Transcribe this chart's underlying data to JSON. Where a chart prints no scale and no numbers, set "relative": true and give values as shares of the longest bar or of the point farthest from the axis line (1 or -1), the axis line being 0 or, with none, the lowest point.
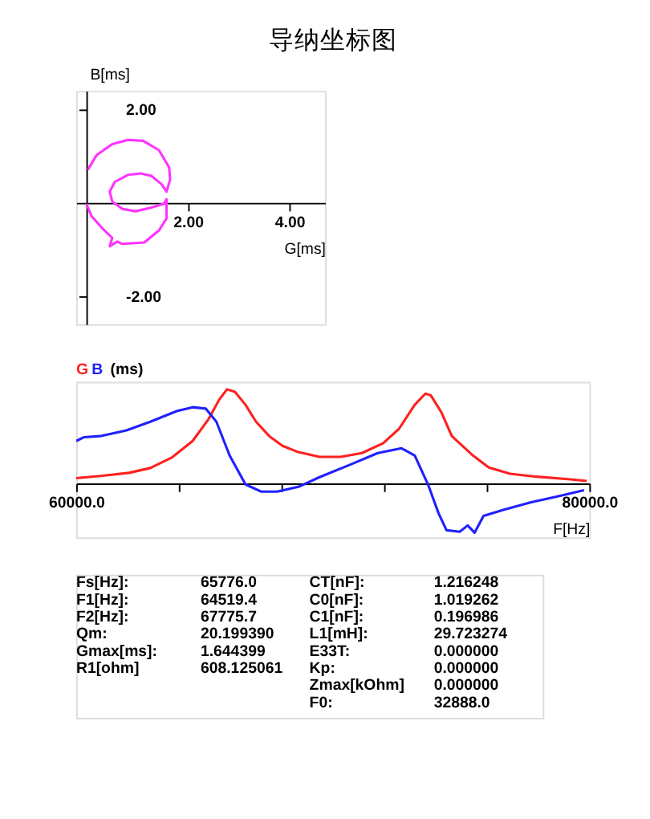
{
  "chart_data": [
    {
      "type": "line",
      "title": "导纳坐标图",
      "xlabel": "G[ms]",
      "ylabel": "B[ms]",
      "xlim": [
        -0.2,
        4.7
      ],
      "ylim": [
        -2.6,
        2.4
      ],
      "xticks": [
        {
          "value": 2,
          "label": "2.00"
        },
        {
          "value": 4,
          "label": "4.00"
        }
      ],
      "yticks": [
        {
          "value": 2,
          "label": "2.00"
        },
        {
          "value": -2,
          "label": "-2.00"
        }
      ],
      "grid": false,
      "series": [
        {
          "color": "#ff33ff",
          "x": [
            0.03,
            0.2,
            0.51,
            0.82,
            1.12,
            1.43,
            1.63,
            1.65,
            1.58,
            1.48,
            1.28,
            1.07,
            0.82,
            0.56,
            0.46,
            0.51,
            0.71,
            0.97,
            1.28,
            1.53,
            1.58,
            1.58,
            1.43,
            1.14,
            0.71,
            0.61,
            0.46,
            0.51,
            0.31,
            0.1,
            0.0
          ],
          "values": [
            0.71,
            1.02,
            1.26,
            1.35,
            1.33,
            1.13,
            0.76,
            0.5,
            0.24,
            0.4,
            0.58,
            0.63,
            0.6,
            0.45,
            0.24,
            0.03,
            -0.13,
            -0.18,
            -0.1,
            -0.02,
            0.08,
            -0.33,
            -0.59,
            -0.85,
            -0.88,
            -0.83,
            -0.93,
            -0.75,
            -0.54,
            -0.28,
            -0.02
          ]
        }
      ]
    },
    {
      "type": "line",
      "relative": true,
      "ylabel": "(ms)",
      "xlabel": "F[Hz]",
      "xlim": [
        60000,
        80000
      ],
      "xticks": [
        {
          "value": 60000,
          "label": "60000.0"
        },
        {
          "value": 64000,
          "label": null
        },
        {
          "value": 68000,
          "label": null
        },
        {
          "value": 72000,
          "label": null
        },
        {
          "value": 76000,
          "label": null
        },
        {
          "value": 80000,
          "label": "80000.0"
        }
      ],
      "grid": false,
      "series": [
        {
          "name": "G",
          "color": "#ff2020",
          "x": [
            60000,
            61031,
            62062,
            62887,
            63711,
            64536,
            65155,
            65567,
            65876,
            66186,
            66598,
            67010,
            67526,
            68041,
            68660,
            69485,
            70309,
            71134,
            71959,
            72577,
            73196,
            73608,
            73814,
            74227,
            74639,
            75464,
            76082,
            76907,
            77938,
            79175,
            79897
          ],
          "values": [
            0.056,
            0.082,
            0.113,
            0.164,
            0.272,
            0.451,
            0.682,
            0.887,
            1.0,
            0.974,
            0.836,
            0.656,
            0.503,
            0.4,
            0.333,
            0.282,
            0.282,
            0.323,
            0.426,
            0.579,
            0.836,
            0.954,
            0.938,
            0.759,
            0.503,
            0.297,
            0.169,
            0.103,
            0.072,
            0.046,
            0.026
          ]
        },
        {
          "name": "B",
          "color": "#2020ff",
          "x": [
            60000,
            60309,
            60928,
            61959,
            62887,
            63918,
            64536,
            65052,
            65464,
            65979,
            66598,
            67216,
            67835,
            68660,
            69485,
            70722,
            71753,
            72680,
            73196,
            73711,
            74124,
            74433,
            74948,
            75258,
            75526,
            75876,
            76701,
            77732,
            78763,
            79794
          ],
          "values": [
            0.451,
            0.492,
            0.503,
            0.564,
            0.656,
            0.769,
            0.81,
            0.795,
            0.656,
            0.297,
            -0.01,
            -0.087,
            -0.087,
            -0.036,
            0.067,
            0.205,
            0.323,
            0.374,
            0.297,
            -0.01,
            -0.318,
            -0.497,
            -0.513,
            -0.446,
            -0.523,
            -0.344,
            -0.277,
            -0.2,
            -0.138,
            -0.072
          ]
        }
      ]
    },
    {
      "type": "other",
      "annotations": [
        "Fs[Hz]:",
        "65776.0",
        "CT[nF]:",
        "1.216248",
        "F1[Hz]:",
        "64519.4",
        "C0[nF]:",
        "1.019262",
        "F2[Hz]:",
        "67775.7",
        "C1[nF]:",
        "0.196986",
        "Qm:",
        "20.199390",
        "L1[mH]:",
        "29.723274",
        "Gmax[ms]:",
        "1.644399",
        "E33T:",
        "0.000000",
        "R1[ohm]",
        "608.125061",
        "Kp:",
        "0.000000",
        "Zmax[kOhm]",
        "0.000000",
        "F0:",
        "32888.0"
      ]
    }
  ]
}
